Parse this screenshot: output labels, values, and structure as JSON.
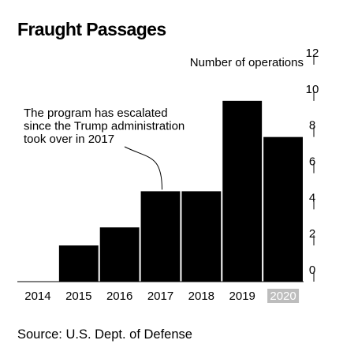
{
  "title": "Fraught Passages",
  "source": "Source: U.S. Dept. of Defense",
  "colors": {
    "bar": "#000000",
    "partial_year_highlight": "#bdbdbd"
  },
  "chart_data": {
    "type": "bar",
    "categories": [
      "2014",
      "2015",
      "2016",
      "2017",
      "2018",
      "2019",
      "2020"
    ],
    "values": [
      0,
      2,
      3,
      5,
      5,
      10,
      8
    ],
    "ylabel": "Number of operations",
    "ylim": [
      0,
      12
    ],
    "yticks": [
      "0",
      "2",
      "4",
      "6",
      "8",
      "10",
      "12"
    ],
    "y_axis_position": "right",
    "grid": false,
    "highlighted_category": "2020",
    "annotation": {
      "lines": [
        "The program has escalated",
        "since the Trump administration",
        "took over in 2017"
      ],
      "points_to": "2017"
    }
  }
}
